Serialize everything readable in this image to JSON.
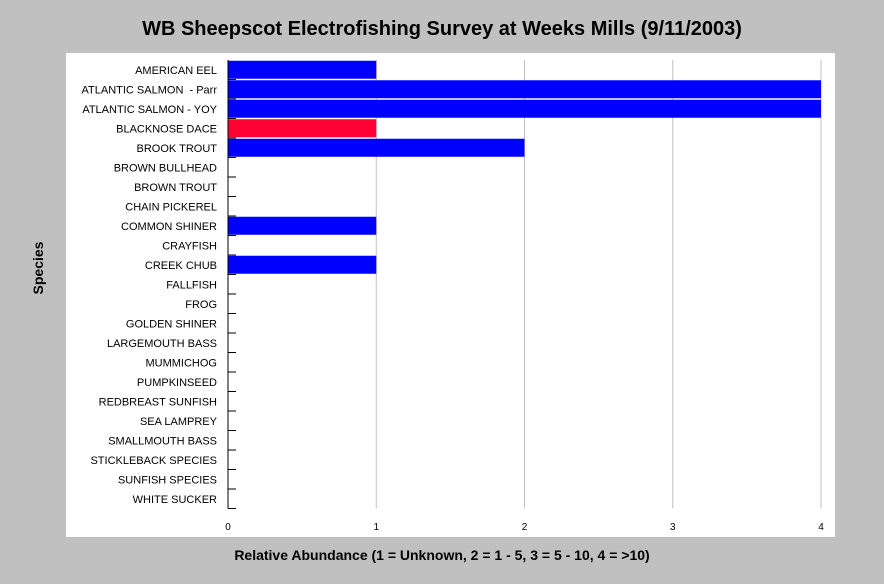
{
  "chart_data": {
    "type": "bar",
    "orientation": "horizontal",
    "title": "WB Sheepscot Electrofishing Survey at Weeks Mills (9/11/2003)",
    "xlabel": "Relative Abundance (1 = Unknown, 2 = 1 - 5, 3 = 5 - 10, 4 = >10)",
    "ylabel": "Species",
    "xlim": [
      0,
      4
    ],
    "xticks": [
      "0",
      "1",
      "2",
      "3",
      "4"
    ],
    "grid": true,
    "categories": [
      "AMERICAN EEL",
      "ATLANTIC SALMON  - Parr",
      "ATLANTIC SALMON - YOY",
      "BLACKNOSE DACE",
      "BROOK TROUT",
      "BROWN BULLHEAD",
      "BROWN TROUT",
      "CHAIN PICKEREL",
      "COMMON SHINER",
      "CRAYFISH",
      "CREEK CHUB",
      "FALLFISH",
      "FROG",
      "GOLDEN SHINER",
      "LARGEMOUTH BASS",
      "MUMMICHOG",
      "PUMPKINSEED",
      "REDBREAST SUNFISH",
      "SEA LAMPREY",
      "SMALLMOUTH BASS",
      "STICKLEBACK SPECIES",
      "SUNFISH SPECIES",
      "WHITE SUCKER"
    ],
    "values": [
      1,
      4,
      4,
      1,
      2,
      0,
      0,
      0,
      1,
      0,
      1,
      0,
      0,
      0,
      0,
      0,
      0,
      0,
      0,
      0,
      0,
      0,
      0
    ],
    "colors": {
      "bar": "#0000ff",
      "highlight": "#ff0033",
      "highlight_category": "BLACKNOSE DACE",
      "plot_bg": "#ffffff",
      "page_bg": "#c0c0c0",
      "grid": "#c0c0c0"
    }
  }
}
